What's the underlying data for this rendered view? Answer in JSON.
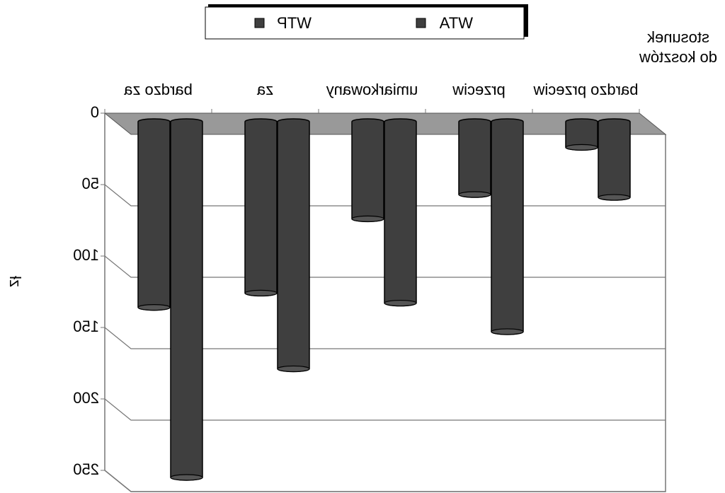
{
  "chart_data": {
    "type": "bar",
    "x_label": "stosunek do kosztów",
    "y_label": "zł",
    "categories": [
      "bardzo za",
      "za",
      "umiarkowany",
      "przeciw",
      "bardzo przeciw"
    ],
    "series": [
      {
        "name": "WTP",
        "color": "#3f3f3f",
        "values": [
          130,
          120,
          68,
          51,
          18
        ]
      },
      {
        "name": "WTA",
        "color": "#3f3f3f",
        "values": [
          249,
          173,
          127,
          147,
          53
        ]
      }
    ],
    "ylim": [
      0,
      250
    ],
    "yticks": [
      0,
      50,
      100,
      150,
      200,
      250
    ],
    "grid": true,
    "legend": "top",
    "mirrored": true
  }
}
